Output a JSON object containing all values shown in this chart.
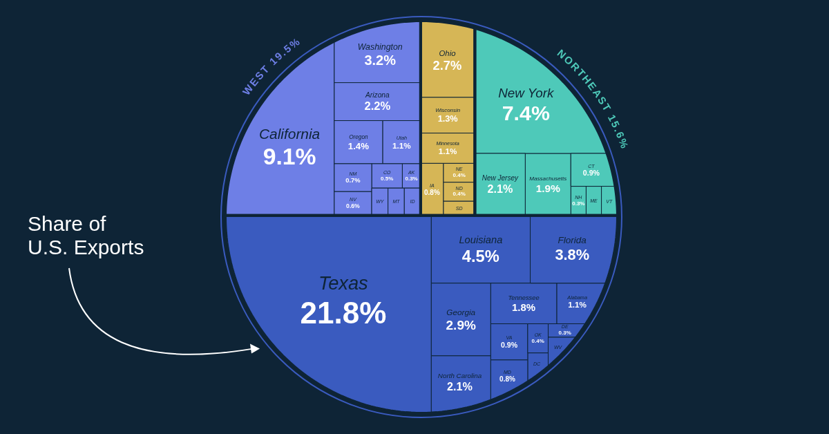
{
  "chart_data": {
    "type": "other",
    "annotations": [
      "Share of U.S. Exports"
    ],
    "categories": [
      "Utah",
      "California",
      "Oregon",
      "AK",
      "Washington",
      "Arizona",
      "CO",
      "NM",
      "NV",
      "WY",
      "MT",
      "ID",
      "IA",
      "NE",
      "ND",
      "SD",
      "Minnesota",
      "Ohio",
      "Wisconsin",
      "NH",
      "ME",
      "Massachusetts",
      "New York",
      "CT",
      "New Jersey",
      "VT",
      "DC",
      "Alabama",
      "Louisiana",
      "VA",
      "Tennessee",
      "DE",
      "MD",
      "Georgia",
      "North Carolina",
      "OK",
      "WV",
      "Florida",
      "Texas"
    ],
    "colors": [
      "#6e7fe6",
      "#6e7fe6",
      "#6e7fe6",
      "#6e7fe6",
      "#6e7fe6",
      "#6e7fe6",
      "#6e7fe6",
      "#6e7fe6",
      "#6e7fe6",
      "#6e7fe6",
      "#6e7fe6",
      "#6e7fe6",
      "#d6b656",
      "#d6b656",
      "#d6b656",
      "#d6b656",
      "#d6b656",
      "#d6b656",
      "#d6b656",
      "#4ec9b9",
      "#4ec9b9",
      "#4ec9b9",
      "#4ec9b9",
      "#4ec9b9",
      "#4ec9b9",
      "#4ec9b9",
      "#3a5bbf",
      "#3a5bbf",
      "#3a5bbf",
      "#3a5bbf",
      "#3a5bbf",
      "#3a5bbf",
      "#3a5bbf",
      "#3a5bbf",
      "#3a5bbf",
      "#3a5bbf",
      "#3a5bbf",
      "#3a5bbf",
      "#3a5bbf"
    ],
    "series": [
      {
        "name": "WEST 19.5%",
        "color": "#6e7fe6",
        "values": [
          1.1,
          9.1,
          1.4,
          0.3,
          3.2,
          2.2,
          0.5,
          0.7,
          0.6,
          null,
          null,
          null,
          null,
          null,
          null,
          null,
          null,
          null,
          null,
          null,
          null,
          null,
          null,
          null,
          null,
          null,
          null,
          null,
          null,
          null,
          null,
          null,
          null,
          null,
          null,
          null,
          null,
          null,
          null
        ],
        "value_labels": [
          "1.1%",
          "9.1%",
          "1.4%",
          "0.3%",
          "3.2%",
          "2.2%",
          "0.5%",
          "0.7%",
          "0.6%",
          null,
          null,
          null,
          null,
          null,
          null,
          null,
          null,
          null,
          null,
          null,
          null,
          null,
          null,
          null,
          null,
          null,
          null,
          null,
          null,
          null,
          null,
          null,
          null,
          null,
          null,
          null,
          null,
          null,
          null
        ]
      },
      {
        "color": "#d6b656",
        "values": [
          null,
          null,
          null,
          null,
          null,
          null,
          null,
          null,
          null,
          null,
          null,
          null,
          0.8,
          0.4,
          0.4,
          null,
          1.1,
          2.7,
          1.3,
          null,
          null,
          null,
          null,
          null,
          null,
          null,
          null,
          null,
          null,
          null,
          null,
          null,
          null,
          null,
          null,
          null,
          null,
          null,
          null
        ],
        "value_labels": [
          null,
          null,
          null,
          null,
          null,
          null,
          null,
          null,
          null,
          null,
          null,
          null,
          "0.8%",
          "0.4%",
          "0.4%",
          null,
          "1.1%",
          "2.7%",
          "1.3%",
          null,
          null,
          null,
          null,
          null,
          null,
          null,
          null,
          null,
          null,
          null,
          null,
          null,
          null,
          null,
          null,
          null,
          null,
          null,
          null
        ]
      },
      {
        "name": "NORTHEAST 15.6%",
        "color": "#4ec9b9",
        "values": [
          null,
          null,
          null,
          null,
          null,
          null,
          null,
          null,
          null,
          null,
          null,
          null,
          null,
          null,
          null,
          null,
          null,
          null,
          null,
          0.3,
          null,
          1.9,
          7.4,
          0.9,
          2.1,
          null,
          null,
          null,
          null,
          null,
          null,
          null,
          null,
          null,
          null,
          null,
          null,
          null,
          null
        ],
        "value_labels": [
          null,
          null,
          null,
          null,
          null,
          null,
          null,
          null,
          null,
          null,
          null,
          null,
          null,
          null,
          null,
          null,
          null,
          null,
          null,
          "0.3%",
          null,
          "1.9%",
          "7.4%",
          "0.9%",
          "2.1%",
          null,
          null,
          null,
          null,
          null,
          null,
          null,
          null,
          null,
          null,
          null,
          null,
          null,
          null
        ]
      },
      {
        "color": "#3a5bbf",
        "values": [
          null,
          null,
          null,
          null,
          null,
          null,
          null,
          null,
          null,
          null,
          null,
          null,
          null,
          null,
          null,
          null,
          null,
          null,
          null,
          null,
          null,
          null,
          null,
          null,
          null,
          null,
          null,
          1.1,
          4.5,
          0.9,
          1.8,
          0.3,
          0.8,
          2.9,
          2.1,
          0.4,
          null,
          3.8,
          21.8
        ],
        "value_labels": [
          null,
          null,
          null,
          null,
          null,
          null,
          null,
          null,
          null,
          null,
          null,
          null,
          null,
          null,
          null,
          null,
          null,
          null,
          null,
          null,
          null,
          null,
          null,
          null,
          null,
          null,
          null,
          "1.1%",
          "4.5%",
          "0.9%",
          "1.8%",
          "0.3%",
          "0.8%",
          "2.9%",
          "2.1%",
          "0.4%",
          null,
          "3.8%",
          "21.8%"
        ]
      }
    ]
  }
}
